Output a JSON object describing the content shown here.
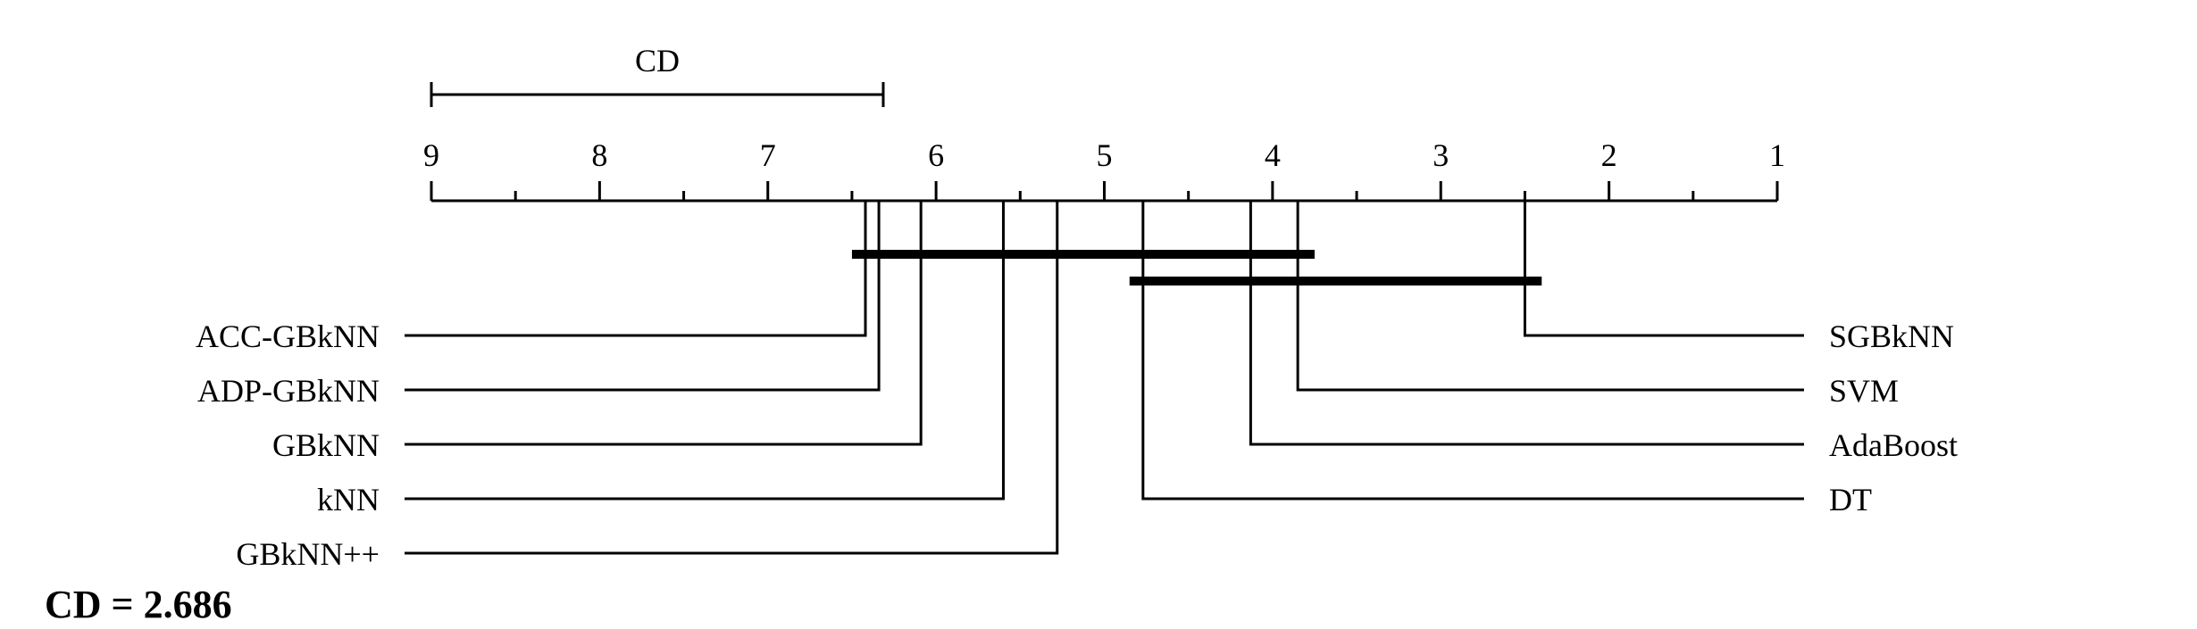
{
  "chart_data": {
    "type": "critical-difference-diagram",
    "axis": {
      "min": 1,
      "max": 9,
      "reversed": true,
      "tick_labels": [
        "9",
        "8",
        "7",
        "6",
        "5",
        "4",
        "3",
        "2",
        "1"
      ]
    },
    "cd_bar_label": "CD",
    "cd_value": 2.686,
    "footer": "CD = 2.686",
    "methods_left": [
      {
        "name": "ACC-GBkNN",
        "rank": 6.42
      },
      {
        "name": "ADP-GBkNN",
        "rank": 6.34
      },
      {
        "name": "GBkNN",
        "rank": 6.09
      },
      {
        "name": "kNN",
        "rank": 5.6
      },
      {
        "name": "GBkNN++",
        "rank": 5.28
      }
    ],
    "methods_right": [
      {
        "name": "SGBkNN",
        "rank": 2.5
      },
      {
        "name": "SVM",
        "rank": 3.85
      },
      {
        "name": "AdaBoost",
        "rank": 4.13
      },
      {
        "name": "DT",
        "rank": 4.77
      }
    ],
    "cliques": [
      {
        "from": 6.5,
        "to": 3.75
      },
      {
        "from": 4.85,
        "to": 2.4
      }
    ]
  }
}
